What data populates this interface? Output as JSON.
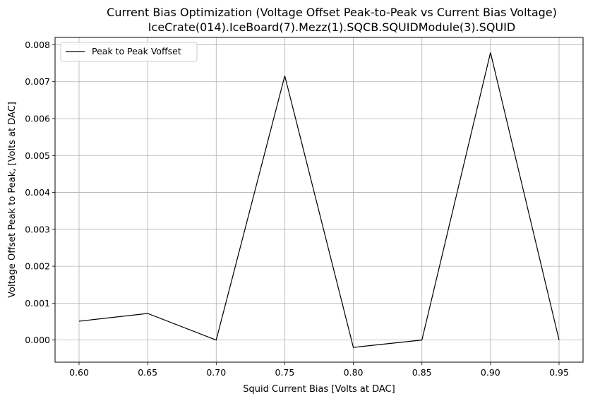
{
  "chart_data": {
    "type": "line",
    "title": "Current Bias Optimization (Voltage Offset Peak-to-Peak vs Current Bias Voltage)",
    "subtitle": "IceCrate(014).IceBoard(7).Mezz(1).SQCB.SQUIDModule(3).SQUID",
    "xlabel": "Squid Current Bias [Volts at DAC]",
    "ylabel": "Voltage Offset Peak to Peak, [Volts at DAC]",
    "xlim": [
      0.5825,
      0.9675
    ],
    "ylim": [
      -0.0006,
      0.0082
    ],
    "xticks": [
      0.6,
      0.65,
      0.7,
      0.75,
      0.8,
      0.85,
      0.9,
      0.95
    ],
    "xtick_labels": [
      "0.60",
      "0.65",
      "0.70",
      "0.75",
      "0.80",
      "0.85",
      "0.90",
      "0.95"
    ],
    "yticks": [
      0.0,
      0.001,
      0.002,
      0.003,
      0.004,
      0.005,
      0.006,
      0.007,
      0.008
    ],
    "ytick_labels": [
      "0.000",
      "0.001",
      "0.002",
      "0.003",
      "0.004",
      "0.005",
      "0.006",
      "0.007",
      "0.008"
    ],
    "grid": true,
    "legend_position": "top-left",
    "series": [
      {
        "name": "Peak to Peak Voffset",
        "color": "#000000",
        "x": [
          0.6,
          0.65,
          0.7,
          0.75,
          0.8,
          0.85,
          0.9,
          0.95
        ],
        "y": [
          0.00051,
          0.00072,
          0.0,
          0.00716,
          -0.0002,
          0.0,
          0.00779,
          0.0
        ]
      }
    ]
  }
}
